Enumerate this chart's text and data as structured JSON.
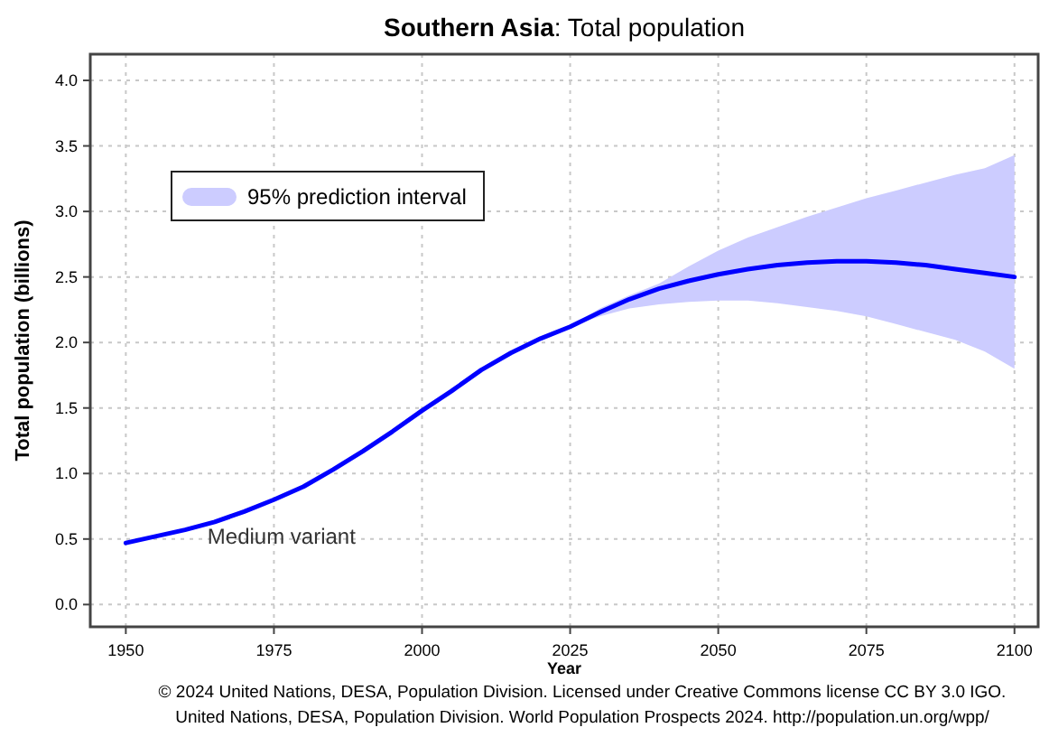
{
  "chart_data": {
    "type": "line",
    "title": "Southern Asia: Total population",
    "xlabel": "Year",
    "ylabel": "Total population (billions)",
    "xlim": [
      1944,
      2104
    ],
    "ylim": [
      -0.17,
      4.2
    ],
    "xticks": [
      1950,
      1975,
      2000,
      2025,
      2050,
      2075,
      2100
    ],
    "yticks": [
      {
        "value": 0,
        "label": "0.0"
      },
      {
        "value": 0.5,
        "label": "0.5"
      },
      {
        "value": 1,
        "label": "1.0"
      },
      {
        "value": 1.5,
        "label": "1.5"
      },
      {
        "value": 2,
        "label": "2.0"
      },
      {
        "value": 2.5,
        "label": "2.5"
      },
      {
        "value": 3,
        "label": "3.0"
      },
      {
        "value": 3.5,
        "label": "3.5"
      },
      {
        "value": 4,
        "label": "4.0"
      }
    ],
    "grid": true,
    "legend": "top left",
    "series": [
      {
        "type": "area",
        "name": "95% prediction interval",
        "color": "#ccccff",
        "x": [
          2025,
          2030,
          2035,
          2040,
          2045,
          2050,
          2055,
          2060,
          2065,
          2070,
          2075,
          2080,
          2085,
          2090,
          2095,
          2100
        ],
        "values": [
          null,
          null,
          null,
          null,
          null,
          null,
          null,
          null,
          null,
          null,
          null,
          null,
          null,
          null,
          null,
          null
        ],
        "lower": [
          2.12,
          2.2,
          2.26,
          2.29,
          2.31,
          2.32,
          2.32,
          2.3,
          2.27,
          2.24,
          2.2,
          2.14,
          2.08,
          2.02,
          1.93,
          1.8
        ],
        "upper": [
          2.12,
          2.26,
          2.36,
          2.45,
          2.58,
          2.7,
          2.8,
          2.88,
          2.96,
          3.03,
          3.1,
          3.16,
          3.22,
          3.28,
          3.33,
          3.43
        ]
      },
      {
        "name": "Medium variant",
        "color": "#0000ff",
        "x": [
          1950,
          1955,
          1960,
          1965,
          1970,
          1975,
          1980,
          1985,
          1990,
          1995,
          2000,
          2005,
          2010,
          2015,
          2020,
          2025,
          2030,
          2035,
          2040,
          2045,
          2050,
          2055,
          2060,
          2065,
          2070,
          2075,
          2080,
          2085,
          2090,
          2095,
          2100
        ],
        "values": [
          0.47,
          0.52,
          0.57,
          0.63,
          0.71,
          0.8,
          0.9,
          1.03,
          1.17,
          1.32,
          1.48,
          1.63,
          1.79,
          1.92,
          2.03,
          2.12,
          2.23,
          2.33,
          2.41,
          2.47,
          2.52,
          2.56,
          2.59,
          2.61,
          2.62,
          2.62,
          2.61,
          2.59,
          2.56,
          2.53,
          2.5
        ]
      }
    ],
    "annotations": [
      "© 2024 United Nations, DESA, Population Division. Licensed under Creative Commons license CC BY 3.0 IGO.",
      "United Nations, DESA, Population Division. World Population Prospects 2024. http://population.un.org/wpp/"
    ]
  }
}
